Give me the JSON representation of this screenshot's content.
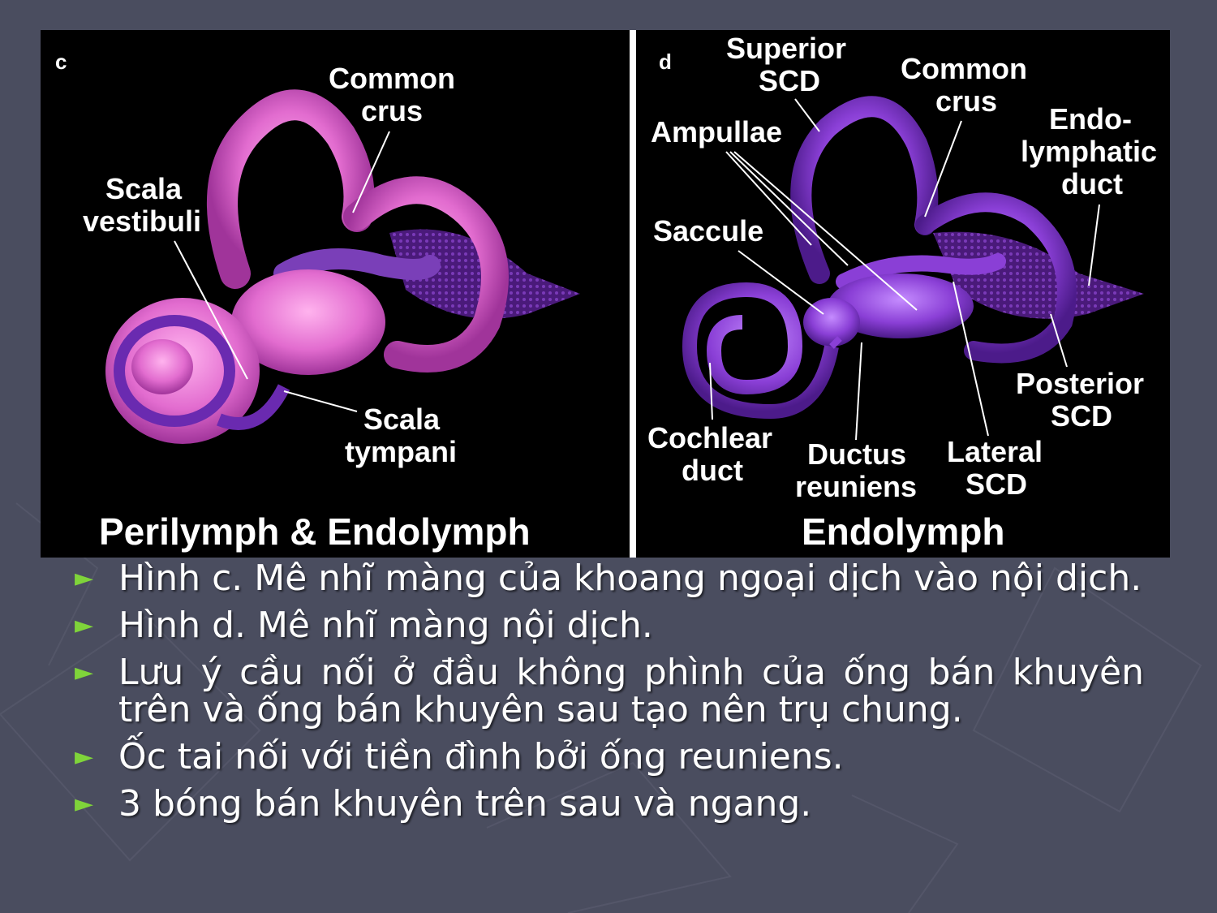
{
  "figure": {
    "left_panel": {
      "letter": "c",
      "caption": "Perilymph & Endolymph",
      "labels": {
        "common_crus_1": "Common",
        "common_crus_2": "crus",
        "scala_vestibuli_1": "Scala",
        "scala_vestibuli_2": "vestibuli",
        "scala_tympani_1": "Scala",
        "scala_tympani_2": "tympani"
      }
    },
    "right_panel": {
      "letter": "d",
      "caption": "Endolymph",
      "labels": {
        "superior_scd_1": "Superior",
        "superior_scd_2": "SCD",
        "common_crus_1": "Common",
        "common_crus_2": "crus",
        "endo_1": "Endo-",
        "endo_2": "lymphatic",
        "endo_3": "duct",
        "ampullae": "Ampullae",
        "saccule": "Saccule",
        "posterior_scd_1": "Posterior",
        "posterior_scd_2": "SCD",
        "cochlear_duct_1": "Cochlear",
        "cochlear_duct_2": "duct",
        "ductus_reuniens_1": "Ductus",
        "ductus_reuniens_2": "reuniens",
        "lateral_scd_1": "Lateral",
        "lateral_scd_2": "SCD"
      }
    }
  },
  "bullets": [
    "Hình c. Mê nhĩ màng của khoang ngoại dịch vào nội dịch.",
    "Hình d. Mê nhĩ màng nội dịch.",
    "Lưu ý cầu nối ở đầu không phình của ống bán khuyên trên và ống bán khuyên sau tạo nên trụ chung.",
    "Ốc tai nối với tiền đình bởi ống reuniens.",
    "3 bóng bán khuyên trên sau và ngang."
  ],
  "colors": {
    "background": "#4a4d5f",
    "bullet_arrow": "#7fd43a",
    "perilymph_pink": "#e26ccf",
    "endolymph_purple": "#8a3fd6"
  },
  "icons": {
    "bullet": "right-triangle-arrow"
  }
}
